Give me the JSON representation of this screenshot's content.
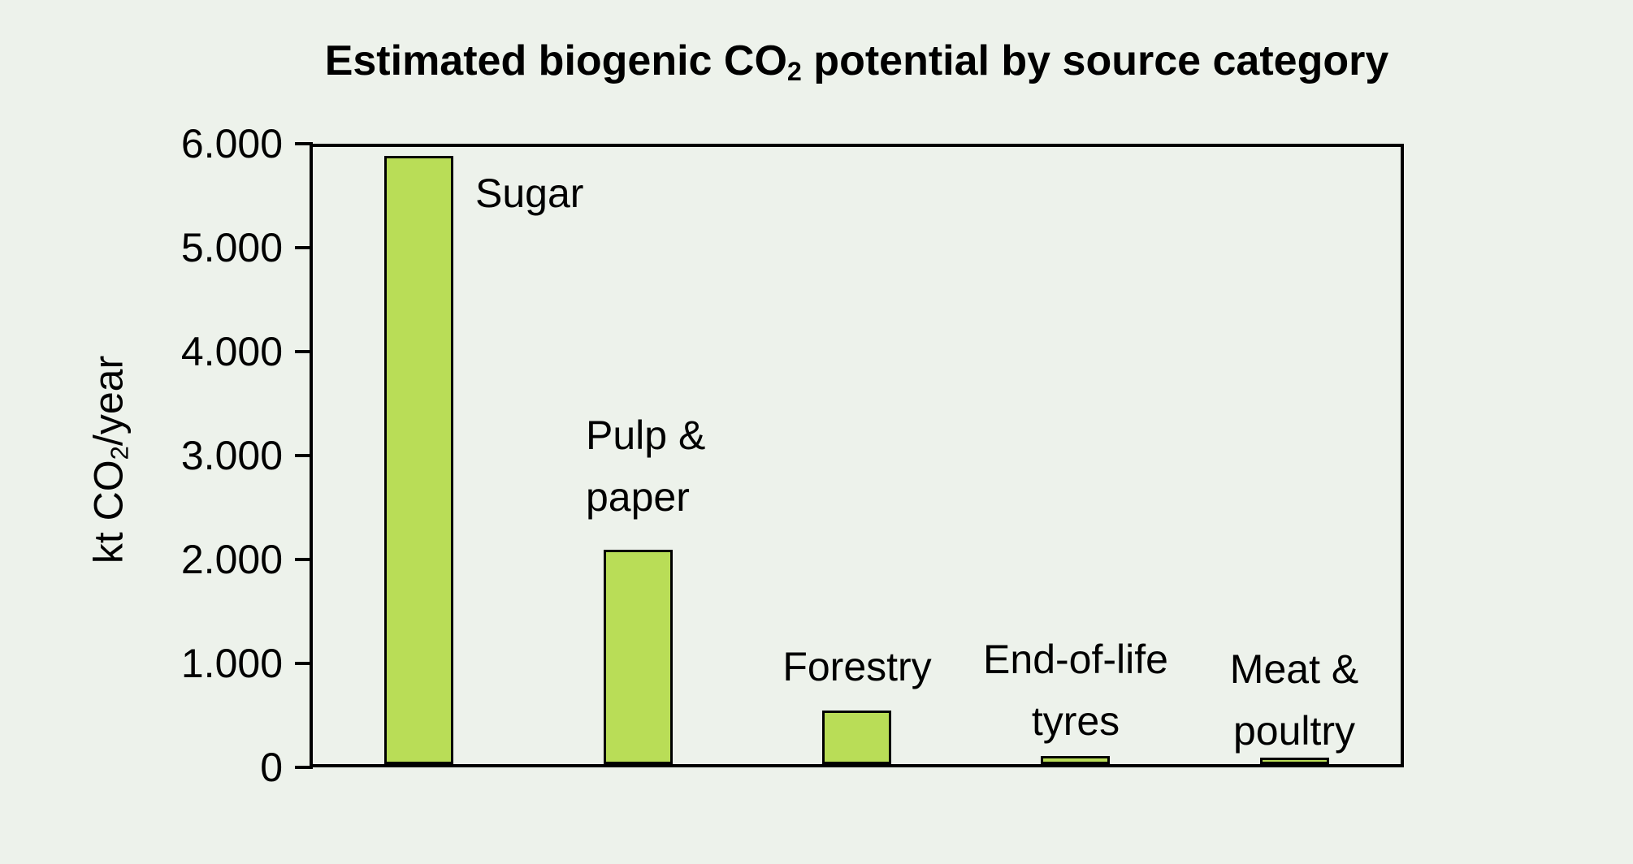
{
  "title": {
    "pre": "Estimated biogenic CO",
    "sub": "2",
    "post": " potential by source category"
  },
  "y_axis": {
    "label_pre": "kt CO",
    "label_sub": "2",
    "label_post": "/year"
  },
  "colors": {
    "background": "#edf2eb",
    "bar_fill": "#b9dd57",
    "bar_border": "#000000",
    "axis": "#000000",
    "text": "#000000"
  },
  "chart_data": {
    "type": "bar",
    "title": "Estimated biogenic CO2 potential by source category",
    "ylabel": "kt CO2/year",
    "xlabel": "",
    "categories": [
      "Sugar",
      "Pulp & paper",
      "Forestry",
      "End-of-life tyres",
      "Meat & poultry"
    ],
    "values": [
      5880,
      2090,
      545,
      110,
      90
    ],
    "label_lines": [
      [
        "Sugar"
      ],
      [
        "Pulp &",
        "paper"
      ],
      [
        "Forestry"
      ],
      [
        "End-of-life",
        "tyres"
      ],
      [
        "Meat &",
        "poultry"
      ]
    ],
    "ylim": [
      0,
      6000
    ],
    "y_tick_values": [
      0,
      1000,
      2000,
      3000,
      4000,
      5000,
      6000
    ],
    "y_tick_labels": [
      "0",
      "1.000",
      "2.000",
      "3.000",
      "4.000",
      "5.000",
      "6.000"
    ],
    "grid": false,
    "legend": "none",
    "bar_outline": true
  }
}
